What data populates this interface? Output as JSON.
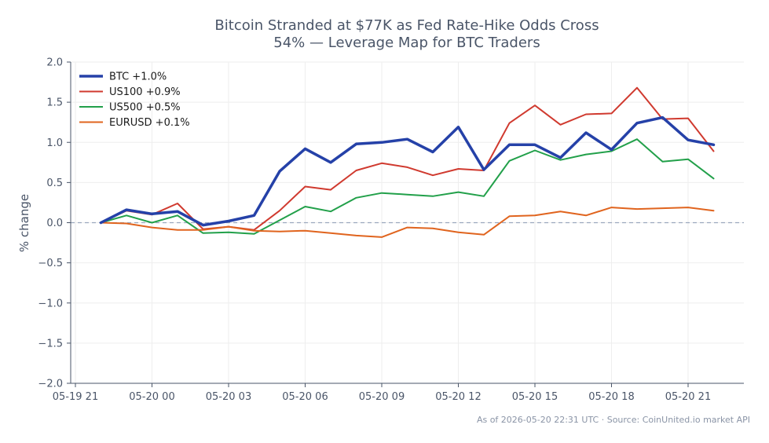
{
  "chart_data": {
    "type": "line",
    "title_lines": [
      "Bitcoin Stranded at $77K as Fed Rate-Hike Odds Cross",
      "54% — Leverage Map for BTC Traders"
    ],
    "xlabel": "",
    "ylabel": "% change",
    "ylim": [
      -2.0,
      2.0
    ],
    "yticks": [
      -2.0,
      -1.5,
      -1.0,
      -0.5,
      0.0,
      0.5,
      1.0,
      1.5,
      2.0
    ],
    "ytick_labels": [
      "−2.0",
      "−1.5",
      "−1.0",
      "−0.5",
      "0.0",
      "0.5",
      "1.0",
      "1.5",
      "2.0"
    ],
    "x": [
      "05-19 22",
      "05-19 23",
      "05-20 00",
      "05-20 01",
      "05-20 02",
      "05-20 03",
      "05-20 04",
      "05-20 05",
      "05-20 06",
      "05-20 07",
      "05-20 08",
      "05-20 09",
      "05-20 10",
      "05-20 11",
      "05-20 12",
      "05-20 13",
      "05-20 14",
      "05-20 15",
      "05-20 16",
      "05-20 17",
      "05-20 18",
      "05-20 19",
      "05-20 20",
      "05-20 21",
      "05-20 22"
    ],
    "xticks": [
      "05-19 21",
      "05-20 00",
      "05-20 03",
      "05-20 06",
      "05-20 09",
      "05-20 12",
      "05-20 15",
      "05-20 18",
      "05-20 21"
    ],
    "grid": true,
    "zero_line": true,
    "legend_position": "top-left",
    "series": [
      {
        "name": "BTC +1.0%",
        "color": "#2541a8",
        "width": 3.5,
        "values": [
          0.0,
          0.16,
          0.11,
          0.14,
          -0.03,
          0.02,
          0.09,
          0.64,
          0.92,
          0.75,
          0.98,
          1.0,
          1.04,
          0.88,
          1.19,
          0.66,
          0.97,
          0.97,
          0.81,
          1.12,
          0.91,
          1.24,
          1.31,
          1.03,
          0.97
        ]
      },
      {
        "name": "US100 +0.9%",
        "color": "#d03a2f",
        "width": 2,
        "values": [
          0.0,
          0.15,
          0.1,
          0.24,
          -0.08,
          -0.05,
          -0.09,
          0.15,
          0.45,
          0.41,
          0.65,
          0.74,
          0.69,
          0.59,
          0.67,
          0.65,
          1.24,
          1.46,
          1.22,
          1.35,
          1.36,
          1.68,
          1.29,
          1.3,
          0.89
        ]
      },
      {
        "name": "US500 +0.5%",
        "color": "#22a04a",
        "width": 2,
        "values": [
          0.0,
          0.09,
          0.0,
          0.09,
          -0.13,
          -0.12,
          -0.14,
          0.03,
          0.2,
          0.14,
          0.31,
          0.37,
          0.35,
          0.33,
          0.38,
          0.33,
          0.77,
          0.9,
          0.78,
          0.85,
          0.89,
          1.04,
          0.76,
          0.79,
          0.55
        ]
      },
      {
        "name": "EURUSD +0.1%",
        "color": "#e0641e",
        "width": 2,
        "values": [
          0.0,
          -0.01,
          -0.06,
          -0.09,
          -0.09,
          -0.05,
          -0.1,
          -0.11,
          -0.1,
          -0.13,
          -0.16,
          -0.18,
          -0.06,
          -0.07,
          -0.12,
          -0.15,
          0.08,
          0.09,
          0.14,
          0.09,
          0.19,
          0.17,
          0.18,
          0.19,
          0.15
        ]
      }
    ],
    "footer": "As of 2026-05-20 22:31 UTC · Source: CoinUnited.io market API"
  },
  "colors": {
    "axis": "#4a5568",
    "grid": "#eeeeee",
    "zero_line": "#9aa7bd",
    "text": "#4a5568"
  }
}
